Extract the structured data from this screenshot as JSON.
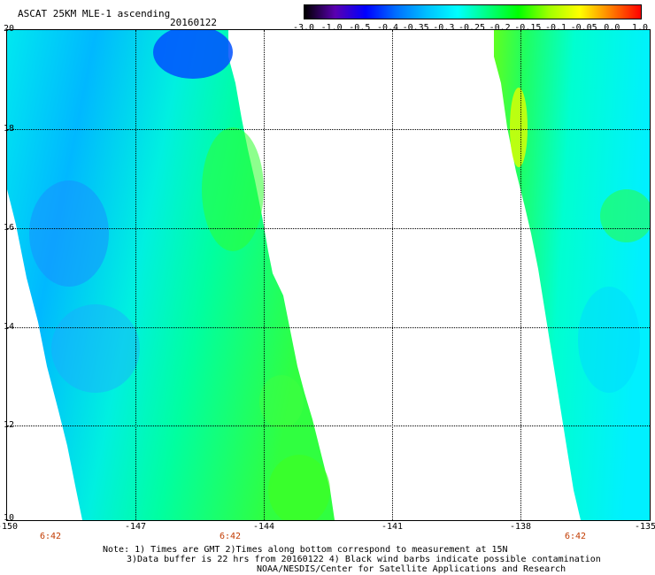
{
  "header": {
    "title": "ASCAT 25KM MLE-1 ascending",
    "date": "20160122"
  },
  "colorbar": {
    "labels": [
      "-3.0",
      "-1.0",
      "-0.5",
      "-0.4",
      "-0.35",
      "-0.3",
      "-0.25",
      "-0.2",
      "-0.15",
      "-0.1",
      "-0.05",
      "0.0",
      "1.0"
    ],
    "colors": [
      "#000000",
      "#5a00b0",
      "#0000ff",
      "#0070ff",
      "#00c0ff",
      "#00ffff",
      "#00ff80",
      "#00ff00",
      "#a0ff00",
      "#ffff00",
      "#ff8000",
      "#ff0000"
    ]
  },
  "map": {
    "lon_labels": [
      "-150",
      "-147",
      "-144",
      "-141",
      "-138",
      "-135"
    ],
    "lat_labels": [
      "20",
      "18",
      "16",
      "14",
      "12",
      "10"
    ],
    "lon_range": [
      -150,
      -135
    ],
    "lat_range": [
      10,
      20
    ],
    "time_labels": [
      "6:42",
      "6:42",
      "6:42"
    ],
    "gridlines": true
  },
  "notes": {
    "line1": "Note: 1) Times are GMT 2)Times along bottom correspond to measurement at 15N",
    "line2": "3)Data buffer is 22 hrs from 20160122 4) Black wind barbs indicate possible contamination",
    "line3": "NOAA/NESDIS/Center for Satellite Applications and Research"
  }
}
